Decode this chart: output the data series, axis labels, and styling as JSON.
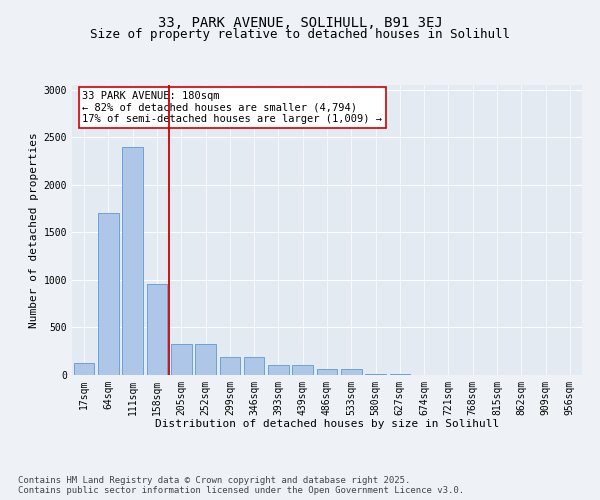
{
  "title1": "33, PARK AVENUE, SOLIHULL, B91 3EJ",
  "title2": "Size of property relative to detached houses in Solihull",
  "xlabel": "Distribution of detached houses by size in Solihull",
  "ylabel": "Number of detached properties",
  "categories": [
    "17sqm",
    "64sqm",
    "111sqm",
    "158sqm",
    "205sqm",
    "252sqm",
    "299sqm",
    "346sqm",
    "393sqm",
    "439sqm",
    "486sqm",
    "533sqm",
    "580sqm",
    "627sqm",
    "674sqm",
    "721sqm",
    "768sqm",
    "815sqm",
    "862sqm",
    "909sqm",
    "956sqm"
  ],
  "values": [
    130,
    1700,
    2400,
    960,
    330,
    330,
    185,
    185,
    100,
    100,
    60,
    60,
    10,
    10,
    5,
    5,
    3,
    3,
    2,
    2,
    1
  ],
  "bar_color": "#aec6e8",
  "bar_edge_color": "#5b9bd5",
  "vline_x_index": 3,
  "vline_color": "#cc0000",
  "annotation_text": "33 PARK AVENUE: 180sqm\n← 82% of detached houses are smaller (4,794)\n17% of semi-detached houses are larger (1,009) →",
  "annotation_box_color": "#cc0000",
  "ylim": [
    0,
    3050
  ],
  "yticks": [
    0,
    500,
    1000,
    1500,
    2000,
    2500,
    3000
  ],
  "bg_color": "#eef2f7",
  "plot_bg_color": "#e4eaf2",
  "footnote": "Contains HM Land Registry data © Crown copyright and database right 2025.\nContains public sector information licensed under the Open Government Licence v3.0.",
  "title1_fontsize": 10,
  "title2_fontsize": 9,
  "xlabel_fontsize": 8,
  "ylabel_fontsize": 8,
  "annotation_fontsize": 7.5,
  "tick_fontsize": 7,
  "footnote_fontsize": 6.5
}
